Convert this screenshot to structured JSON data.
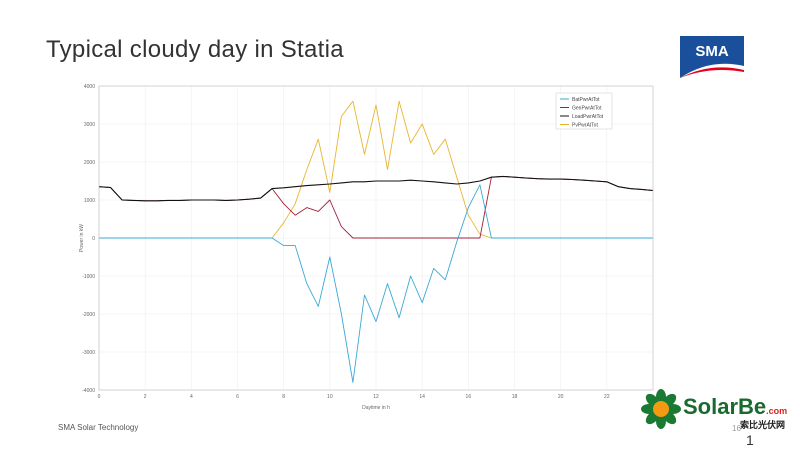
{
  "slide": {
    "title": "Typical cloudy day in Statia",
    "footer": "SMA Solar Technology",
    "page_number": "16",
    "page_number_overlay": "1"
  },
  "logos": {
    "sma": "SMA",
    "solarbe_main": "SolarBe",
    "solarbe_com": ".com",
    "solarbe_cn": "索比光伏网"
  },
  "colors": {
    "bat": "#3aa8d8",
    "gen": "#a3203c",
    "load": "#111111",
    "pv": "#e8b52e",
    "sma_blue": "#1a4f9c",
    "sma_red": "#e3001b"
  },
  "chart_data": {
    "type": "line",
    "xlabel": "Daytime in h",
    "ylabel": "Power in kW",
    "xlim": [
      0,
      24
    ],
    "ylim": [
      -4000,
      4000
    ],
    "xticks": [
      0,
      2,
      4,
      6,
      8,
      10,
      12,
      14,
      16,
      18,
      20,
      22
    ],
    "yticks": [
      4000,
      3000,
      2000,
      1000,
      0,
      -1000,
      -2000,
      -3000,
      -4000
    ],
    "grid": true,
    "legend_position": "top-right",
    "x": [
      0,
      0.5,
      1,
      1.5,
      2,
      2.5,
      3,
      3.5,
      4,
      4.5,
      5,
      5.5,
      6,
      6.5,
      7,
      7.5,
      8,
      8.5,
      9,
      9.5,
      10,
      10.5,
      11,
      11.5,
      12,
      12.5,
      13,
      13.5,
      14,
      14.5,
      15,
      15.5,
      16,
      16.5,
      17,
      17.5,
      18,
      18.5,
      19,
      19.5,
      20,
      20.5,
      21,
      21.5,
      22,
      22.5,
      23,
      23.5,
      24
    ],
    "series": [
      {
        "name": "BatPwrAtTot",
        "color": "#3aa8d8",
        "values": [
          0,
          0,
          0,
          0,
          0,
          0,
          0,
          0,
          0,
          0,
          0,
          0,
          0,
          0,
          0,
          0,
          -200,
          -200,
          -1200,
          -1800,
          -500,
          -2000,
          -3800,
          -1500,
          -2200,
          -1200,
          -2100,
          -1000,
          -1700,
          -800,
          -1100,
          -100,
          800,
          1400,
          0,
          0,
          0,
          0,
          0,
          0,
          0,
          0,
          0,
          0,
          0,
          0,
          0,
          0,
          0
        ]
      },
      {
        "name": "GenPwrAtTot",
        "color": "#a3203c",
        "values": [
          1350,
          1330,
          1000,
          990,
          980,
          980,
          990,
          990,
          1000,
          1000,
          1000,
          990,
          1000,
          1020,
          1050,
          1300,
          900,
          600,
          800,
          700,
          1000,
          300,
          0,
          0,
          0,
          0,
          0,
          0,
          0,
          0,
          0,
          0,
          0,
          0,
          1600,
          1620,
          1600,
          1580,
          1560,
          1550,
          1550,
          1540,
          1520,
          1500,
          1480,
          1350,
          1300,
          1280,
          1250
        ]
      },
      {
        "name": "LoadPwrAtTot",
        "color": "#111111",
        "values": [
          1350,
          1330,
          1000,
          990,
          980,
          980,
          990,
          990,
          1000,
          1000,
          1000,
          990,
          1000,
          1020,
          1050,
          1300,
          1320,
          1350,
          1380,
          1400,
          1420,
          1450,
          1480,
          1480,
          1500,
          1500,
          1500,
          1520,
          1500,
          1480,
          1450,
          1420,
          1450,
          1500,
          1600,
          1620,
          1600,
          1580,
          1560,
          1550,
          1550,
          1540,
          1520,
          1500,
          1480,
          1350,
          1300,
          1280,
          1250
        ]
      },
      {
        "name": "PvPwrAtTot",
        "color": "#e8b52e",
        "values": [
          0,
          0,
          0,
          0,
          0,
          0,
          0,
          0,
          0,
          0,
          0,
          0,
          0,
          0,
          0,
          0,
          400,
          900,
          1800,
          2600,
          1200,
          3200,
          3600,
          2200,
          3500,
          1800,
          3600,
          2500,
          3000,
          2200,
          2600,
          1600,
          600,
          100,
          0,
          0,
          0,
          0,
          0,
          0,
          0,
          0,
          0,
          0,
          0,
          0,
          0,
          0,
          0
        ]
      }
    ]
  }
}
